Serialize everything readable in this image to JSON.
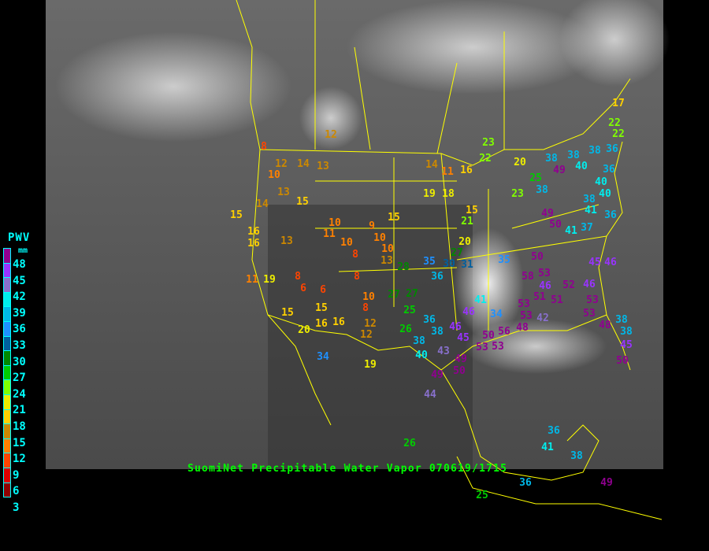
{
  "title": "SuomiNet Precipitable Water Vapor 070619/1715",
  "legend": {
    "title": "PWV",
    "unit": "mm",
    "labels": [
      "48",
      "45",
      "42",
      "39",
      "36",
      "33",
      "30",
      "27",
      "24",
      "21",
      "18",
      "15",
      "12",
      "9",
      "6",
      "3"
    ],
    "thresholds": [
      48,
      45,
      42,
      39,
      36,
      33,
      30,
      27,
      24,
      21,
      18,
      15,
      12,
      9,
      6,
      3,
      0
    ],
    "colors": [
      "#900090",
      "#9933ff",
      "#8870cc",
      "#00eeee",
      "#00b8e8",
      "#1e90ff",
      "#005f9f",
      "#008800",
      "#00cc00",
      "#80ff00",
      "#eeee00",
      "#ffd000",
      "#cc8800",
      "#ff8000",
      "#ff4400",
      "#dd0000",
      "#900000"
    ]
  },
  "map_colors": {
    "boundaries": "#ffff00",
    "background": "#000000"
  },
  "stations": [
    12,
    8,
    12,
    14,
    13,
    10,
    13,
    15,
    14,
    15,
    16,
    16,
    13,
    10,
    11,
    10,
    8,
    9,
    10,
    10,
    15,
    13,
    14,
    11,
    16,
    19,
    18,
    15,
    21,
    20,
    27,
    23,
    22,
    28,
    35,
    30,
    31,
    36,
    8,
    6,
    6,
    15,
    16,
    16,
    20,
    15,
    11,
    19,
    8,
    10,
    8,
    12,
    12,
    27,
    27,
    25,
    26,
    36,
    38,
    38,
    40,
    43,
    46,
    45,
    46,
    41,
    34,
    53,
    49,
    50,
    49,
    44,
    19,
    34,
    26,
    36,
    41,
    38,
    36,
    25,
    49,
    35,
    50,
    58,
    53,
    46,
    51,
    51,
    53,
    53,
    42,
    48,
    45,
    46,
    52,
    46,
    53,
    53,
    48,
    38,
    38,
    45,
    50,
    23,
    20,
    25,
    38,
    38,
    38,
    40,
    49,
    38,
    36,
    36,
    40,
    40,
    38,
    41,
    36,
    37,
    41,
    17,
    22,
    22,
    49,
    50,
    56,
    50,
    53
  ]
}
